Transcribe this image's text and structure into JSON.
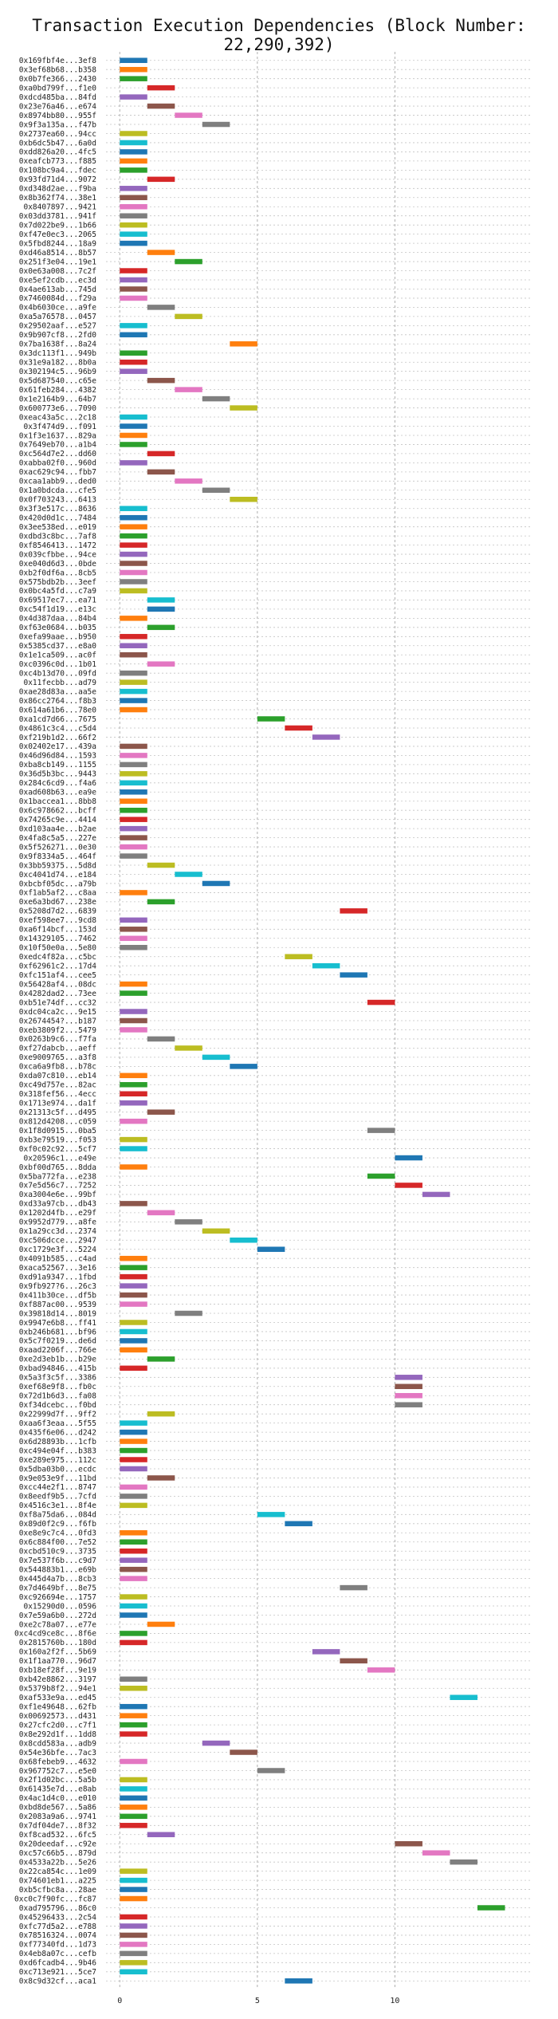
{
  "chart_data": {
    "type": "bar",
    "orientation": "horizontal",
    "title": "Transaction Execution Dependencies (Block Number: 22,290,392)",
    "xlabel": "",
    "ylabel": "",
    "xlim": [
      -0.5,
      15
    ],
    "xticks": [
      0,
      5,
      10
    ],
    "grid": true,
    "color_palette": [
      "#1f77b4",
      "#ff7f0e",
      "#2ca02c",
      "#d62728",
      "#9467bd",
      "#8c564b",
      "#e377c2",
      "#7f7f7f",
      "#bcbd22",
      "#17becf"
    ],
    "bar_duration": 1,
    "transactions": [
      {
        "label": "0x169fbf4e...3ef8",
        "start": 0
      },
      {
        "label": "0x3ef68b68...b358",
        "start": 0
      },
      {
        "label": "0x0b7fe366...2430",
        "start": 0
      },
      {
        "label": "0xa0bd799f...f1e0",
        "start": 1
      },
      {
        "label": "0xdcd485ba...84fd",
        "start": 0
      },
      {
        "label": "0x23e76a46...e674",
        "start": 1
      },
      {
        "label": "0x8974bb80...955f",
        "start": 2
      },
      {
        "label": "0x9f3a135a...f47b",
        "start": 3
      },
      {
        "label": "0x2737ea60...94cc",
        "start": 0
      },
      {
        "label": "0xb6dc5b47...6a0d",
        "start": 0
      },
      {
        "label": "0xdd826a20...4fc5",
        "start": 0
      },
      {
        "label": "0xeafcb773...f885",
        "start": 0
      },
      {
        "label": "0x108bc9a4...fdec",
        "start": 0
      },
      {
        "label": "0x93fd71d4...9072",
        "start": 1
      },
      {
        "label": "0xd348d2ae...f9ba",
        "start": 0
      },
      {
        "label": "0x8b362f74...38e1",
        "start": 0
      },
      {
        "label": "0x8407897...9421",
        "start": 0
      },
      {
        "label": "0x03dd3781...941f",
        "start": 0
      },
      {
        "label": "0x7d022be9...1b66",
        "start": 0
      },
      {
        "label": "0xf47e0ec3...2065",
        "start": 0
      },
      {
        "label": "0x5fbd8244...18a9",
        "start": 0
      },
      {
        "label": "0xd46a8514...8b57",
        "start": 1
      },
      {
        "label": "0x251f3e04...19e1",
        "start": 2
      },
      {
        "label": "0x0e63a008...7c2f",
        "start": 0
      },
      {
        "label": "0xe5ef2cdb...ec3d",
        "start": 0
      },
      {
        "label": "0x4ae613ab...745d",
        "start": 0
      },
      {
        "label": "0x7460084d...f29a",
        "start": 0
      },
      {
        "label": "0x4b6030ce...a9fe",
        "start": 1
      },
      {
        "label": "0xa5a76578...0457",
        "start": 2
      },
      {
        "label": "0x29502aaf...e527",
        "start": 0
      },
      {
        "label": "0x9b907cf8...2fd0",
        "start": 0
      },
      {
        "label": "0x7ba1638f...8a24",
        "start": 4
      },
      {
        "label": "0x3dc113f1...949b",
        "start": 0
      },
      {
        "label": "0x31e9a182...8b0a",
        "start": 0
      },
      {
        "label": "0x302194c5...96b9",
        "start": 0
      },
      {
        "label": "0x5d687540...c65e",
        "start": 1
      },
      {
        "label": "0x61feb284...4382",
        "start": 2
      },
      {
        "label": "0x1e2164b9...64b7",
        "start": 3
      },
      {
        "label": "0x600773e6...7090",
        "start": 4
      },
      {
        "label": "0xeac43a5c...2c18",
        "start": 0
      },
      {
        "label": "0x3f474d9...f091",
        "start": 0
      },
      {
        "label": "0x1f3e1637...829a",
        "start": 0
      },
      {
        "label": "0x7649eb70...a1b4",
        "start": 0
      },
      {
        "label": "0xc564d7e2...dd60",
        "start": 1
      },
      {
        "label": "0xabba02f0...960d",
        "start": 0
      },
      {
        "label": "0xac629c94...fbb7",
        "start": 1
      },
      {
        "label": "0xcaa1abb9...ded0",
        "start": 2
      },
      {
        "label": "0x1a0bdcda...cfe5",
        "start": 3
      },
      {
        "label": "0x0f703243...6413",
        "start": 4
      },
      {
        "label": "0x3f3e517c...8636",
        "start": 0
      },
      {
        "label": "0x420d0d1c...7484",
        "start": 0
      },
      {
        "label": "0x3ee538ed...e019",
        "start": 0
      },
      {
        "label": "0xdbd3c8bc...7af8",
        "start": 0
      },
      {
        "label": "0xf8546413...1472",
        "start": 0
      },
      {
        "label": "0x039cfbbe...94ce",
        "start": 0
      },
      {
        "label": "0xe040d6d3...0bde",
        "start": 0
      },
      {
        "label": "0xb2f0df6a...8cb5",
        "start": 0
      },
      {
        "label": "0x575bdb2b...3eef",
        "start": 0
      },
      {
        "label": "0x0bc4a5fd...c7a9",
        "start": 0
      },
      {
        "label": "0x69517ec7...ea71",
        "start": 1
      },
      {
        "label": "0xc54f1d19...e13c",
        "start": 1
      },
      {
        "label": "0x4d387daa...84b4",
        "start": 0
      },
      {
        "label": "0xf63e0684...b035",
        "start": 1
      },
      {
        "label": "0xefa99aae...b950",
        "start": 0
      },
      {
        "label": "0x5385cd37...e8a0",
        "start": 0
      },
      {
        "label": "0x1e1ca509...ac0f",
        "start": 0
      },
      {
        "label": "0xc0396c0d...1b01",
        "start": 1
      },
      {
        "label": "0xc4b13d70...09fd",
        "start": 0
      },
      {
        "label": "0x11fecbb...ad79",
        "start": 0
      },
      {
        "label": "0xae28d83a...aa5e",
        "start": 0
      },
      {
        "label": "0x86cc2764...f8b3",
        "start": 0
      },
      {
        "label": "0x614a61b6...78e0",
        "start": 0
      },
      {
        "label": "0xa1cd7d66...7675",
        "start": 5
      },
      {
        "label": "0x4861c3c4...c5d4",
        "start": 6
      },
      {
        "label": "0xf219b1d2...66f2",
        "start": 7
      },
      {
        "label": "0x02402e17...439a",
        "start": 0
      },
      {
        "label": "0x46d96d84...1593",
        "start": 0
      },
      {
        "label": "0xba8cb149...1155",
        "start": 0
      },
      {
        "label": "0x36d5b3bc...9443",
        "start": 0
      },
      {
        "label": "0x284c6cd9...f4a6",
        "start": 0
      },
      {
        "label": "0xad608b63...ea9e",
        "start": 0
      },
      {
        "label": "0x1baccea1...8bb8",
        "start": 0
      },
      {
        "label": "0x6c978662...bcff",
        "start": 0
      },
      {
        "label": "0x74265c9e...4414",
        "start": 0
      },
      {
        "label": "0xd103aa4e...b2ae",
        "start": 0
      },
      {
        "label": "0x4fa8c5a5...227e",
        "start": 0
      },
      {
        "label": "0x5f526271...0e30",
        "start": 0
      },
      {
        "label": "0x9f8334a5...464f",
        "start": 0
      },
      {
        "label": "0x3bb59375...5d8d",
        "start": 1
      },
      {
        "label": "0xc4041d74...e184",
        "start": 2
      },
      {
        "label": "0xbcbf05dc...a79b",
        "start": 3
      },
      {
        "label": "0xf1ab5af2...c8aa",
        "start": 0
      },
      {
        "label": "0xe6a3bd67...238e",
        "start": 1
      },
      {
        "label": "0x5208d7d2...6839",
        "start": 8
      },
      {
        "label": "0xef598ee7...9cd8",
        "start": 0
      },
      {
        "label": "0xa6f14bcf...153d",
        "start": 0
      },
      {
        "label": "0x14329105...7462",
        "start": 0
      },
      {
        "label": "0x10f50e0a...5e80",
        "start": 0
      },
      {
        "label": "0xedc4f82a...c5bc",
        "start": 6
      },
      {
        "label": "0xf62961c2...17d4",
        "start": 7
      },
      {
        "label": "0xfc151af4...cee5",
        "start": 8
      },
      {
        "label": "0x56428af4...08dc",
        "start": 0
      },
      {
        "label": "0x4282dad2...73ee",
        "start": 0
      },
      {
        "label": "0xb51e74df...cc32",
        "start": 9
      },
      {
        "label": "0xdc04ca2c...9e15",
        "start": 0
      },
      {
        "label": "0x2674454?...b187",
        "start": 0
      },
      {
        "label": "0xeb3809f2...5479",
        "start": 0
      },
      {
        "label": "0x0263b9c6...f7fa",
        "start": 1
      },
      {
        "label": "0xf27dabcb...aeff",
        "start": 2
      },
      {
        "label": "0xe9009765...a3f8",
        "start": 3
      },
      {
        "label": "0xca6a9fb8...b78c",
        "start": 4
      },
      {
        "label": "0xda07c810...eb14",
        "start": 0
      },
      {
        "label": "0xc49d757e...82ac",
        "start": 0
      },
      {
        "label": "0x318fef56...4ecc",
        "start": 0
      },
      {
        "label": "0x1713e974...da1f",
        "start": 0
      },
      {
        "label": "0x21313c5f...d495",
        "start": 1
      },
      {
        "label": "0x812d4208...c059",
        "start": 0
      },
      {
        "label": "0x1f8d0915...0ba5",
        "start": 9
      },
      {
        "label": "0xb3e79519...f053",
        "start": 0
      },
      {
        "label": "0xf0c02c92...5cf7",
        "start": 0
      },
      {
        "label": "0x20596c1...e49e",
        "start": 10
      },
      {
        "label": "0xbf00d765...8dda",
        "start": 0
      },
      {
        "label": "0x5ba772fa...e238",
        "start": 9
      },
      {
        "label": "0x7e5d56c7...7252",
        "start": 10
      },
      {
        "label": "0xa3004e6e...99bf",
        "start": 11
      },
      {
        "label": "0xd33a97cb...db43",
        "start": 0
      },
      {
        "label": "0x1202d4fb...e29f",
        "start": 1
      },
      {
        "label": "0x9952d779...a8fe",
        "start": 2
      },
      {
        "label": "0x1a29cc3d...2374",
        "start": 3
      },
      {
        "label": "0xc506dcce...2947",
        "start": 4
      },
      {
        "label": "0xc1729e3f...5224",
        "start": 5
      },
      {
        "label": "0x4091b585...c4ad",
        "start": 0
      },
      {
        "label": "0xaca52567...3e16",
        "start": 0
      },
      {
        "label": "0xd91a9347...1fbd",
        "start": 0
      },
      {
        "label": "0x9fb927?6...26c3",
        "start": 0
      },
      {
        "label": "0x411b30ce...df5b",
        "start": 0
      },
      {
        "label": "0xf887ac00...9539",
        "start": 0
      },
      {
        "label": "0x39818d14...8019",
        "start": 2
      },
      {
        "label": "0x9947e6b8...ff41",
        "start": 0
      },
      {
        "label": "0xb246b681...bf96",
        "start": 0
      },
      {
        "label": "0x5c7f0219...de6d",
        "start": 0
      },
      {
        "label": "0xaad2206f...766e",
        "start": 0
      },
      {
        "label": "0xe2d3eb1b...b29e",
        "start": 1
      },
      {
        "label": "0xbad94846...415b",
        "start": 0
      },
      {
        "label": "0x5a3f3c5f...3386",
        "start": 10
      },
      {
        "label": "0xef68e9f8...fb0c",
        "start": 10
      },
      {
        "label": "0x72d1b6d3...fa08",
        "start": 10
      },
      {
        "label": "0xf34dcebc...f0bd",
        "start": 10
      },
      {
        "label": "0x22999d7f...9ff2",
        "start": 1
      },
      {
        "label": "0xaa6f3eaa...5f55",
        "start": 0
      },
      {
        "label": "0x435f6e06...d242",
        "start": 0
      },
      {
        "label": "0x6d28893b...1cfb",
        "start": 0
      },
      {
        "label": "0xc494e04f...b383",
        "start": 0
      },
      {
        "label": "0xe289e975...112c",
        "start": 0
      },
      {
        "label": "0x5dba03b0...ecdc",
        "start": 0
      },
      {
        "label": "0x9e053e9f...11bd",
        "start": 1
      },
      {
        "label": "0xcc44e2f1...8747",
        "start": 0
      },
      {
        "label": "0x8eedf9b5...7cfd",
        "start": 0
      },
      {
        "label": "0x4516c3e1...8f4e",
        "start": 0
      },
      {
        "label": "0xf8a75da6...084d",
        "start": 5
      },
      {
        "label": "0x89d0f2c9...f6fb",
        "start": 6
      },
      {
        "label": "0xe8e9c7c4...0fd3",
        "start": 0
      },
      {
        "label": "0x6c884f00...7e52",
        "start": 0
      },
      {
        "label": "0xcbd510c9...3735",
        "start": 0
      },
      {
        "label": "0x7e537f6b...c9d7",
        "start": 0
      },
      {
        "label": "0x544883b1...e69b",
        "start": 0
      },
      {
        "label": "0x445d4a7b...8cb3",
        "start": 0
      },
      {
        "label": "0x7d4649bf...8e75",
        "start": 8
      },
      {
        "label": "0xc926694e...1757",
        "start": 0
      },
      {
        "label": "0x15290d0...0596",
        "start": 0
      },
      {
        "label": "0x7e59a6b0...272d",
        "start": 0
      },
      {
        "label": "0xe2c78a07...e77e",
        "start": 1
      },
      {
        "label": "0xc4cd9ce8c...8f6e",
        "start": 0
      },
      {
        "label": "0x2815760b...180d",
        "start": 0
      },
      {
        "label": "0x160a2f2f...5b69",
        "start": 7
      },
      {
        "label": "0x1f1aa770...96d7",
        "start": 8
      },
      {
        "label": "0xb18ef28f...9e19",
        "start": 9
      },
      {
        "label": "0xb42e8862...3197",
        "start": 0
      },
      {
        "label": "0x5379b8f2...94e1",
        "start": 0
      },
      {
        "label": "0xaf533e9a...ed45",
        "start": 12
      },
      {
        "label": "0xf1e49648...62fb",
        "start": 0
      },
      {
        "label": "0x00692573...d431",
        "start": 0
      },
      {
        "label": "0x27cfc2d0...c7f1",
        "start": 0
      },
      {
        "label": "0x8e292d1f...1dd8",
        "start": 0
      },
      {
        "label": "0x8cdd583a...adb9",
        "start": 3
      },
      {
        "label": "0x54e36bfe...7ac3",
        "start": 4
      },
      {
        "label": "0x68febeb9...4632",
        "start": 0
      },
      {
        "label": "0x967752c7...e5e0",
        "start": 5
      },
      {
        "label": "0x2f1d02bc...5a5b",
        "start": 0
      },
      {
        "label": "0x61435e7d...e8ab",
        "start": 0
      },
      {
        "label": "0x4ac1d4c0...e010",
        "start": 0
      },
      {
        "label": "0xbd8de567...5a86",
        "start": 0
      },
      {
        "label": "0x2083a9a6...9741",
        "start": 0
      },
      {
        "label": "0x7df04de7...8f32",
        "start": 0
      },
      {
        "label": "0xf8cad532...6fc5",
        "start": 1
      },
      {
        "label": "0x20deedaf...c92e",
        "start": 10
      },
      {
        "label": "0xc57c66b5...879d",
        "start": 11
      },
      {
        "label": "0x4533a22b...5e26",
        "start": 12
      },
      {
        "label": "0x22ca854c...1e09",
        "start": 0
      },
      {
        "label": "0x74601eb1...a225",
        "start": 0
      },
      {
        "label": "0xb5cfbc8a...28ae",
        "start": 0
      },
      {
        "label": "0xc0c7f90fc...fc87",
        "start": 0
      },
      {
        "label": "0xad795796...86c0",
        "start": 13
      },
      {
        "label": "0x45296433...2c54",
        "start": 0
      },
      {
        "label": "0xfc77d5a2...e788",
        "start": 0
      },
      {
        "label": "0x78516324...0074",
        "start": 0
      },
      {
        "label": "0xf77340fd...1d73",
        "start": 0
      },
      {
        "label": "0x4eb8a07c...cefb",
        "start": 0
      },
      {
        "label": "0xd6fcadb4...9b46",
        "start": 0
      },
      {
        "label": "0xc713e921...5ce7",
        "start": 0
      },
      {
        "label": "0x8c9d32cf...aca1",
        "start": 6
      }
    ]
  }
}
